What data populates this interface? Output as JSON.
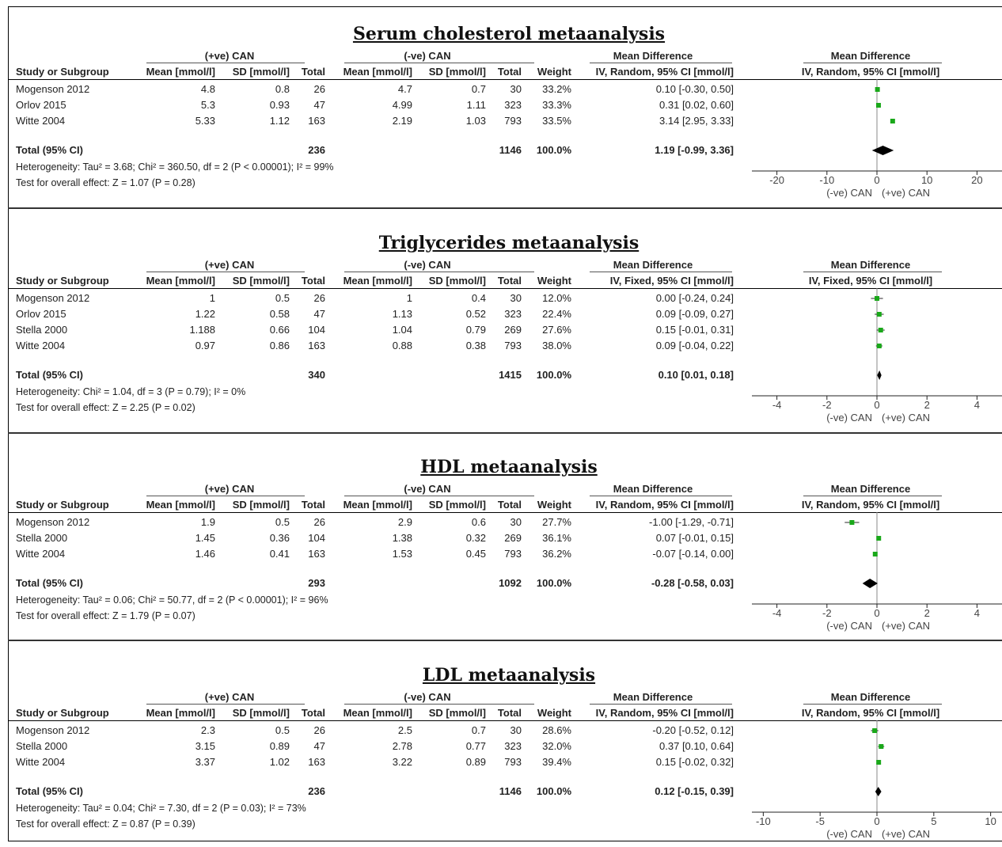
{
  "column_headers": {
    "study": "Study or Subgroup",
    "mean": "Mean [mmol/l]",
    "sd": "SD [mmol/l]",
    "total": "Total",
    "weight": "Weight",
    "group_pos": "(+ve) CAN",
    "group_neg": "(-ve) CAN",
    "md": "Mean Difference",
    "total_row_label": "Total (95% CI)",
    "favours_left": "(-ve) CAN",
    "favours_right": "(+ve) CAN"
  },
  "chart_data": [
    {
      "type": "forest",
      "title": "Serum cholesterol metaanalysis",
      "method": "IV, Random, 95% CI [mmol/l]",
      "rows": [
        {
          "study": "Mogenson 2012",
          "mean1": "4.8",
          "sd1": "0.8",
          "n1": "26",
          "mean2": "4.7",
          "sd2": "0.7",
          "n2": "30",
          "weight": "33.2%",
          "ci_text": "0.10 [-0.30, 0.50]",
          "md": 0.1,
          "lo": -0.3,
          "hi": 0.5
        },
        {
          "study": "Orlov 2015",
          "mean1": "5.3",
          "sd1": "0.93",
          "n1": "47",
          "mean2": "4.99",
          "sd2": "1.11",
          "n2": "323",
          "weight": "33.3%",
          "ci_text": "0.31 [0.02, 0.60]",
          "md": 0.31,
          "lo": 0.02,
          "hi": 0.6
        },
        {
          "study": "Witte 2004",
          "mean1": "5.33",
          "sd1": "1.12",
          "n1": "163",
          "mean2": "2.19",
          "sd2": "1.03",
          "n2": "793",
          "weight": "33.5%",
          "ci_text": "3.14 [2.95, 3.33]",
          "md": 3.14,
          "lo": 2.95,
          "hi": 3.33
        }
      ],
      "total": {
        "n1": "236",
        "n2": "1146",
        "weight": "100.0%",
        "ci_text": "1.19 [-0.99, 3.36]",
        "md": 1.19,
        "lo": -0.99,
        "hi": 3.36
      },
      "heterogeneity": "Heterogeneity: Tau² = 3.68; Chi² = 360.50, df = 2 (P < 0.00001); I² = 99%",
      "overall": "Test for overall effect: Z = 1.07 (P = 0.28)",
      "xlim": [
        -25,
        25
      ],
      "ticks": [
        -20,
        -10,
        0,
        10,
        20
      ]
    },
    {
      "type": "forest",
      "title": "Triglycerides metaanalysis",
      "method": "IV, Fixed, 95% CI [mmol/l]",
      "rows": [
        {
          "study": "Mogenson 2012",
          "mean1": "1",
          "sd1": "0.5",
          "n1": "26",
          "mean2": "1",
          "sd2": "0.4",
          "n2": "30",
          "weight": "12.0%",
          "ci_text": "0.00 [-0.24, 0.24]",
          "md": 0.0,
          "lo": -0.24,
          "hi": 0.24
        },
        {
          "study": "Orlov 2015",
          "mean1": "1.22",
          "sd1": "0.58",
          "n1": "47",
          "mean2": "1.13",
          "sd2": "0.52",
          "n2": "323",
          "weight": "22.4%",
          "ci_text": "0.09 [-0.09, 0.27]",
          "md": 0.09,
          "lo": -0.09,
          "hi": 0.27
        },
        {
          "study": "Stella 2000",
          "mean1": "1.188",
          "sd1": "0.66",
          "n1": "104",
          "mean2": "1.04",
          "sd2": "0.79",
          "n2": "269",
          "weight": "27.6%",
          "ci_text": "0.15 [-0.01, 0.31]",
          "md": 0.15,
          "lo": -0.01,
          "hi": 0.31
        },
        {
          "study": "Witte 2004",
          "mean1": "0.97",
          "sd1": "0.86",
          "n1": "163",
          "mean2": "0.88",
          "sd2": "0.38",
          "n2": "793",
          "weight": "38.0%",
          "ci_text": "0.09 [-0.04, 0.22]",
          "md": 0.09,
          "lo": -0.04,
          "hi": 0.22
        }
      ],
      "total": {
        "n1": "340",
        "n2": "1415",
        "weight": "100.0%",
        "ci_text": "0.10 [0.01, 0.18]",
        "md": 0.1,
        "lo": 0.01,
        "hi": 0.18
      },
      "heterogeneity": "Heterogeneity: Chi² = 1.04, df = 3 (P = 0.79); I² = 0%",
      "overall": "Test for overall effect: Z = 2.25 (P = 0.02)",
      "xlim": [
        -5,
        5
      ],
      "ticks": [
        -4,
        -2,
        0,
        2,
        4
      ]
    },
    {
      "type": "forest",
      "title": "HDL metaanalysis",
      "method": "IV, Random, 95% CI [mmol/l]",
      "rows": [
        {
          "study": "Mogenson 2012",
          "mean1": "1.9",
          "sd1": "0.5",
          "n1": "26",
          "mean2": "2.9",
          "sd2": "0.6",
          "n2": "30",
          "weight": "27.7%",
          "ci_text": "-1.00 [-1.29, -0.71]",
          "md": -1.0,
          "lo": -1.29,
          "hi": -0.71
        },
        {
          "study": "Stella 2000",
          "mean1": "1.45",
          "sd1": "0.36",
          "n1": "104",
          "mean2": "1.38",
          "sd2": "0.32",
          "n2": "269",
          "weight": "36.1%",
          "ci_text": "0.07 [-0.01, 0.15]",
          "md": 0.07,
          "lo": -0.01,
          "hi": 0.15
        },
        {
          "study": "Witte 2004",
          "mean1": "1.46",
          "sd1": "0.41",
          "n1": "163",
          "mean2": "1.53",
          "sd2": "0.45",
          "n2": "793",
          "weight": "36.2%",
          "ci_text": "-0.07 [-0.14, 0.00]",
          "md": -0.07,
          "lo": -0.14,
          "hi": 0.0
        }
      ],
      "total": {
        "n1": "293",
        "n2": "1092",
        "weight": "100.0%",
        "ci_text": "-0.28 [-0.58, 0.03]",
        "md": -0.28,
        "lo": -0.58,
        "hi": 0.03
      },
      "heterogeneity": "Heterogeneity: Tau² = 0.06; Chi² = 50.77, df = 2 (P < 0.00001); I² = 96%",
      "overall": "Test for overall effect: Z = 1.79 (P = 0.07)",
      "xlim": [
        -5,
        5
      ],
      "ticks": [
        -4,
        -2,
        0,
        2,
        4
      ]
    },
    {
      "type": "forest",
      "title": "LDL metaanalysis",
      "method": "IV, Random, 95% CI [mmol/l]",
      "rows": [
        {
          "study": "Mogenson 2012",
          "mean1": "2.3",
          "sd1": "0.5",
          "n1": "26",
          "mean2": "2.5",
          "sd2": "0.7",
          "n2": "30",
          "weight": "28.6%",
          "ci_text": "-0.20 [-0.52, 0.12]",
          "md": -0.2,
          "lo": -0.52,
          "hi": 0.12
        },
        {
          "study": "Stella 2000",
          "mean1": "3.15",
          "sd1": "0.89",
          "n1": "47",
          "mean2": "2.78",
          "sd2": "0.77",
          "n2": "323",
          "weight": "32.0%",
          "ci_text": "0.37 [0.10, 0.64]",
          "md": 0.37,
          "lo": 0.1,
          "hi": 0.64
        },
        {
          "study": "Witte 2004",
          "mean1": "3.37",
          "sd1": "1.02",
          "n1": "163",
          "mean2": "3.22",
          "sd2": "0.89",
          "n2": "793",
          "weight": "39.4%",
          "ci_text": "0.15 [-0.02, 0.32]",
          "md": 0.15,
          "lo": -0.02,
          "hi": 0.32
        }
      ],
      "total": {
        "n1": "236",
        "n2": "1146",
        "weight": "100.0%",
        "ci_text": "0.12 [-0.15, 0.39]",
        "md": 0.12,
        "lo": -0.15,
        "hi": 0.39
      },
      "heterogeneity": "Heterogeneity: Tau² = 0.04; Chi² = 7.30, df = 2 (P = 0.03); I² = 73%",
      "overall": "Test for overall effect: Z = 0.87 (P = 0.39)",
      "xlim": [
        -11,
        11
      ],
      "ticks": [
        -10,
        -5,
        0,
        5,
        10
      ]
    }
  ]
}
